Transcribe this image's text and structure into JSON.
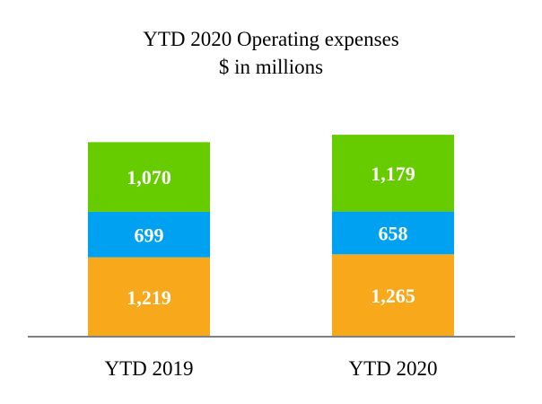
{
  "chart_data": {
    "type": "bar",
    "stacked": true,
    "title": "YTD 2020 Operating expenses",
    "subtitle": "$ in millions",
    "categories": [
      "YTD 2019",
      "YTD 2020"
    ],
    "series": [
      {
        "name": "bottom",
        "color": "#F7A81B",
        "values": [
          1219,
          1265
        ],
        "labels": [
          "1,219",
          "1,265"
        ]
      },
      {
        "name": "middle",
        "color": "#00A1F0",
        "values": [
          699,
          658
        ],
        "labels": [
          "699",
          "658"
        ]
      },
      {
        "name": "top",
        "color": "#66CC00",
        "values": [
          1070,
          1179
        ],
        "labels": [
          "1,070",
          "1,179"
        ]
      }
    ],
    "axis_color": "#7F7F7F",
    "ylim": [
      0,
      3250
    ],
    "grid": false,
    "legend": "none"
  }
}
